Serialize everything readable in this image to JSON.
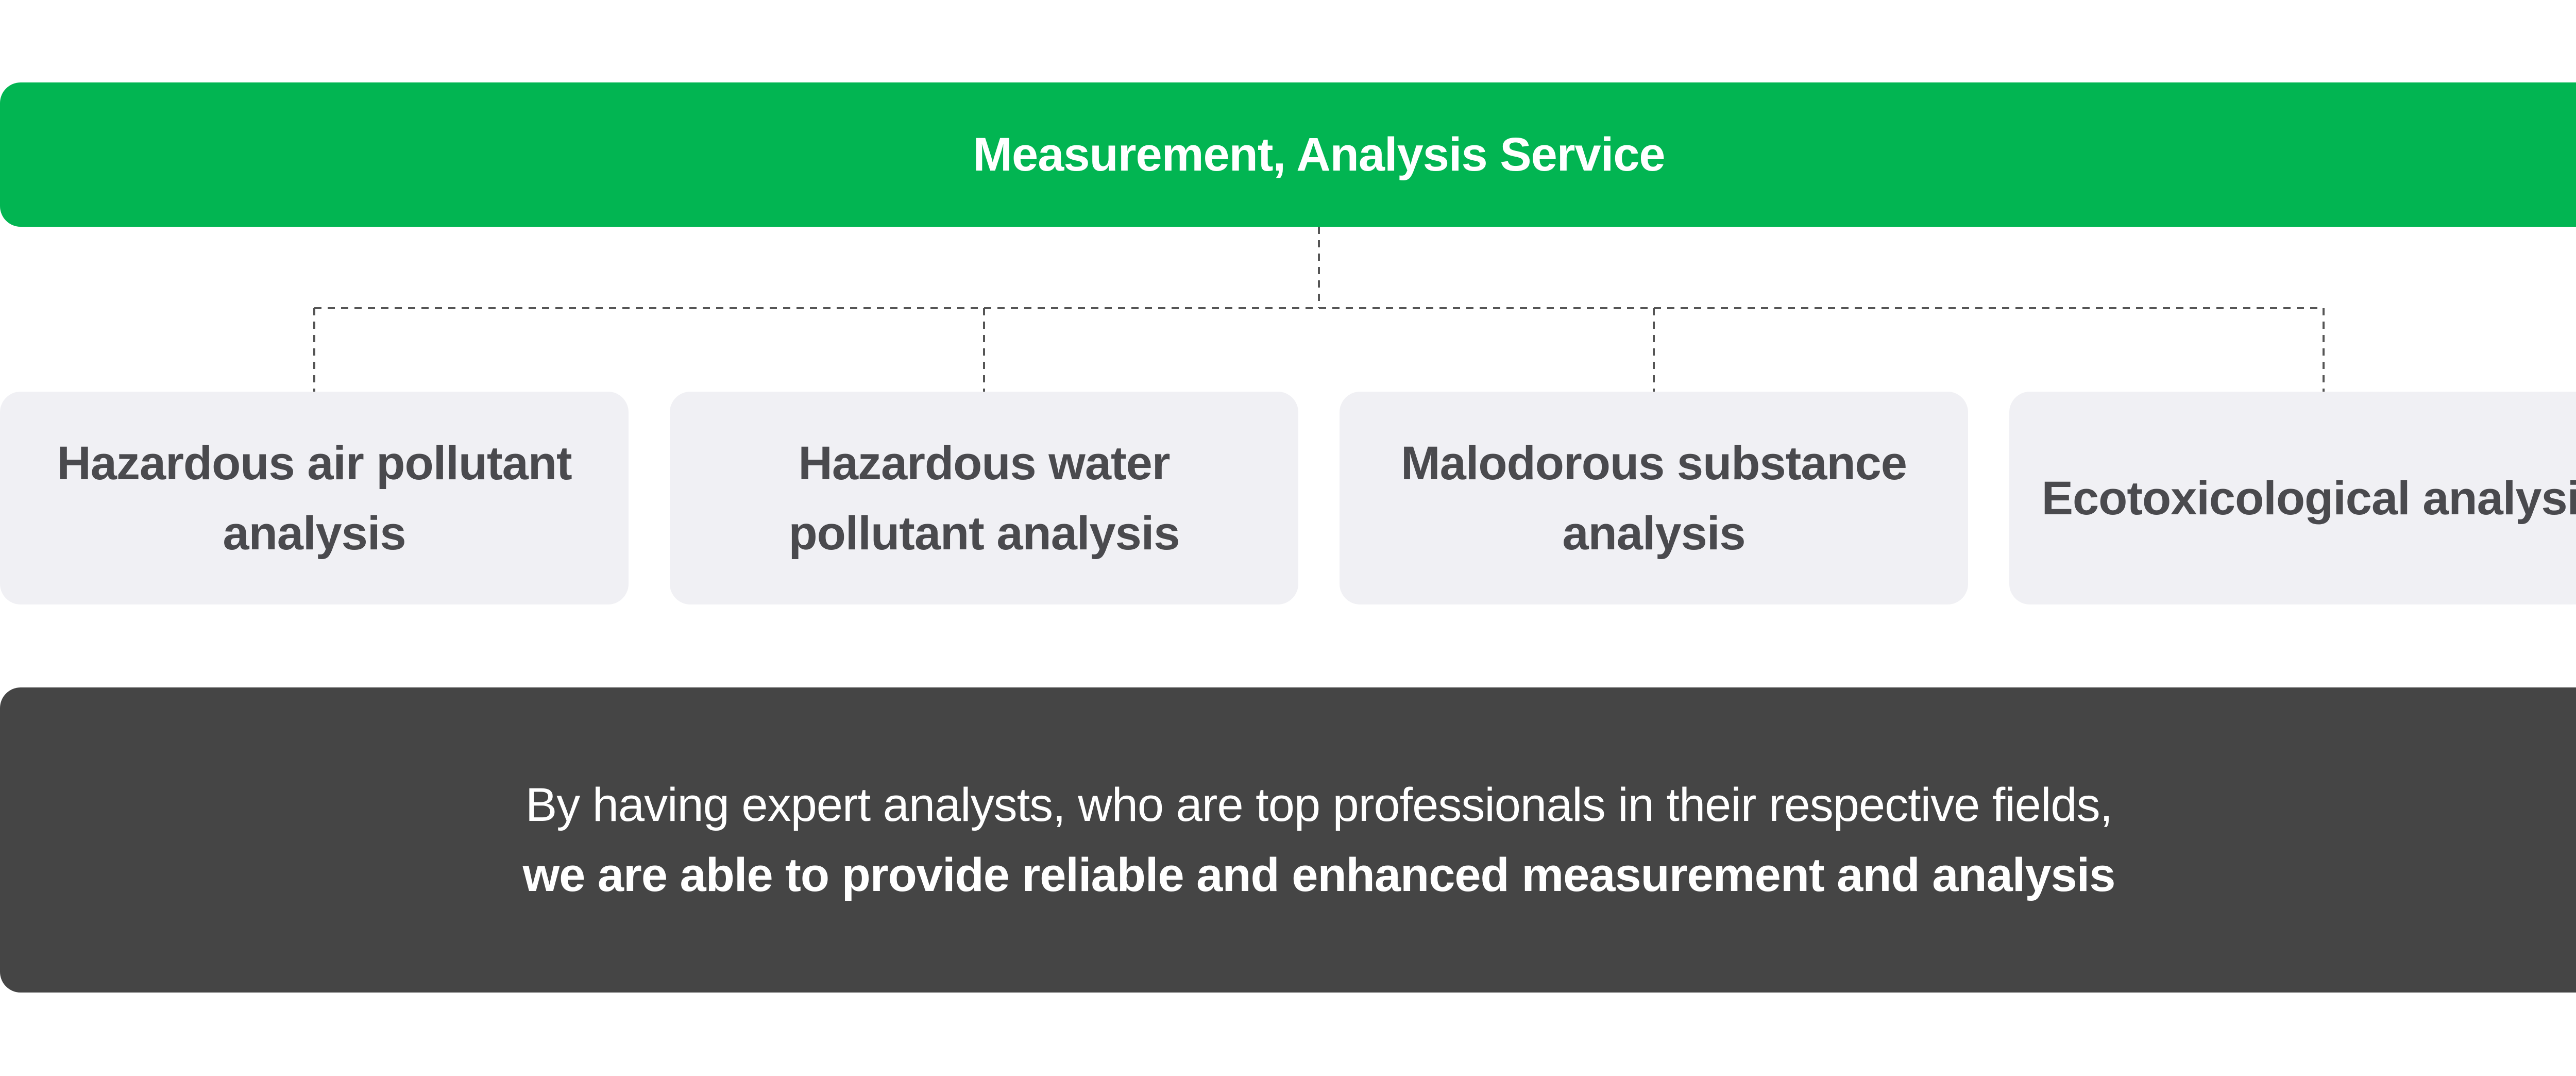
{
  "header": {
    "title": "Measurement, Analysis Service"
  },
  "services": [
    {
      "label_line1": "Hazardous air pollutant",
      "label_line2": "analysis"
    },
    {
      "label_line1": "Hazardous water",
      "label_line2": "pollutant analysis"
    },
    {
      "label_line1": "Malodorous substance",
      "label_line2": "analysis"
    },
    {
      "label_line1": "Ecotoxicological analysis",
      "label_line2": ""
    }
  ],
  "footer": {
    "line1": "By having expert analysts, who are top professionals in their respective fields,",
    "line2": "we are able to provide reliable and enhanced measurement and analysis"
  },
  "colors": {
    "header_bg": "#02b552",
    "card_bg": "#f0f0f4",
    "footer_bg": "#454545",
    "connector": "#555555"
  }
}
